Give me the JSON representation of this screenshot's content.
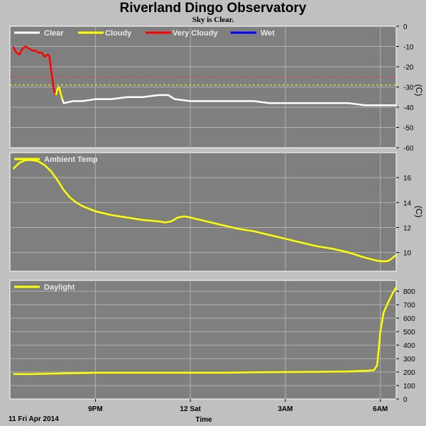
{
  "header": {
    "title": "Riverland Dingo Observatory",
    "subtitle": "Sky is Clear."
  },
  "colors": {
    "background": "#c0c0c0",
    "panel": "#7f7f7f",
    "grid": "#b0b0b0",
    "clear": "#ffffff",
    "cloudy": "#ffff00",
    "very_cloudy": "#ff0000",
    "wet": "#0000ff",
    "threshold_red": "#ff3030",
    "threshold_yellow": "#ffff00"
  },
  "footer": {
    "date_label": "11 Fri Apr 2014",
    "xlabel": "Time"
  },
  "chart_data": [
    {
      "type": "line",
      "panel": "sky",
      "ylabel": "(C)",
      "ylim": [
        -60,
        0
      ],
      "yticks": [
        0,
        -10,
        -20,
        -30,
        -40,
        -50,
        -60
      ],
      "xlim": [
        18.3,
        30.5
      ],
      "xticks": [
        {
          "x": 21,
          "label": "9PM"
        },
        {
          "x": 24,
          "label": "12 Sat"
        },
        {
          "x": 27,
          "label": "3AM"
        },
        {
          "x": 30,
          "label": "6AM"
        }
      ],
      "grid": true,
      "legend": [
        "Clear",
        "Cloudy",
        "Very Cloudy",
        "Wet"
      ],
      "thresholds": [
        {
          "y": -25,
          "color": "red"
        },
        {
          "y": -29,
          "color": "yellow"
        }
      ],
      "series": [
        {
          "name": "Very Cloudy",
          "color": "red",
          "points": [
            [
              18.4,
              -10
            ],
            [
              18.5,
              -13
            ],
            [
              18.6,
              -14
            ],
            [
              18.7,
              -11
            ],
            [
              18.8,
              -10
            ],
            [
              18.9,
              -11
            ],
            [
              19.0,
              -12
            ],
            [
              19.1,
              -12
            ],
            [
              19.2,
              -13
            ],
            [
              19.3,
              -13
            ],
            [
              19.4,
              -15
            ],
            [
              19.5,
              -14
            ],
            [
              19.55,
              -15
            ],
            [
              19.6,
              -22
            ],
            [
              19.7,
              -32
            ],
            [
              19.75,
              -34
            ]
          ]
        },
        {
          "name": "Cloudy",
          "color": "yellow",
          "points": [
            [
              19.75,
              -34
            ],
            [
              19.8,
              -31
            ],
            [
              19.85,
              -30
            ],
            [
              19.9,
              -33
            ],
            [
              19.95,
              -36
            ]
          ]
        },
        {
          "name": "Clear",
          "color": "white",
          "points": [
            [
              19.95,
              -36
            ],
            [
              20.0,
              -38
            ],
            [
              20.3,
              -37
            ],
            [
              20.6,
              -37
            ],
            [
              21.0,
              -36
            ],
            [
              21.5,
              -36
            ],
            [
              22.0,
              -35
            ],
            [
              22.5,
              -35
            ],
            [
              23.0,
              -34
            ],
            [
              23.3,
              -34
            ],
            [
              23.5,
              -36
            ],
            [
              24.0,
              -37
            ],
            [
              24.5,
              -37
            ],
            [
              25.0,
              -37
            ],
            [
              25.5,
              -37
            ],
            [
              26.0,
              -37
            ],
            [
              26.5,
              -38
            ],
            [
              27.0,
              -38
            ],
            [
              27.5,
              -38
            ],
            [
              28.0,
              -38
            ],
            [
              28.5,
              -38
            ],
            [
              29.0,
              -38
            ],
            [
              29.5,
              -39
            ],
            [
              30.0,
              -39
            ],
            [
              30.5,
              -39
            ]
          ]
        }
      ]
    },
    {
      "type": "line",
      "panel": "ambient",
      "ylabel": "(C)",
      "ylim": [
        8.5,
        18
      ],
      "yticks": [
        10,
        12,
        14,
        16
      ],
      "xlim": [
        18.3,
        30.5
      ],
      "grid": true,
      "legend": [
        "Ambient Temp"
      ],
      "series": [
        {
          "name": "Ambient Temp",
          "color": "yellow",
          "points": [
            [
              18.4,
              16.7
            ],
            [
              18.6,
              17.2
            ],
            [
              18.8,
              17.4
            ],
            [
              19.0,
              17.4
            ],
            [
              19.2,
              17.3
            ],
            [
              19.4,
              17.0
            ],
            [
              19.6,
              16.5
            ],
            [
              19.8,
              15.8
            ],
            [
              20.0,
              15.0
            ],
            [
              20.2,
              14.4
            ],
            [
              20.4,
              14.0
            ],
            [
              20.6,
              13.7
            ],
            [
              20.8,
              13.5
            ],
            [
              21.0,
              13.3
            ],
            [
              21.5,
              13.0
            ],
            [
              22.0,
              12.8
            ],
            [
              22.5,
              12.6
            ],
            [
              23.0,
              12.5
            ],
            [
              23.2,
              12.4
            ],
            [
              23.4,
              12.5
            ],
            [
              23.6,
              12.8
            ],
            [
              23.8,
              12.9
            ],
            [
              24.0,
              12.8
            ],
            [
              24.5,
              12.5
            ],
            [
              25.0,
              12.2
            ],
            [
              25.5,
              11.9
            ],
            [
              26.0,
              11.7
            ],
            [
              26.5,
              11.4
            ],
            [
              27.0,
              11.1
            ],
            [
              27.5,
              10.8
            ],
            [
              28.0,
              10.5
            ],
            [
              28.5,
              10.3
            ],
            [
              29.0,
              10.0
            ],
            [
              29.5,
              9.6
            ],
            [
              29.8,
              9.4
            ],
            [
              30.0,
              9.3
            ],
            [
              30.2,
              9.3
            ],
            [
              30.3,
              9.4
            ],
            [
              30.5,
              9.8
            ]
          ]
        }
      ]
    },
    {
      "type": "line",
      "panel": "daylight",
      "ylabel": "",
      "ylim": [
        0,
        880
      ],
      "yticks": [
        0,
        100,
        200,
        300,
        400,
        500,
        600,
        700,
        800
      ],
      "xlim": [
        18.3,
        30.5
      ],
      "grid": true,
      "legend": [
        "Daylight"
      ],
      "series": [
        {
          "name": "Daylight",
          "color": "yellow",
          "points": [
            [
              18.4,
              185
            ],
            [
              19.0,
              185
            ],
            [
              20.0,
              190
            ],
            [
              21.0,
              195
            ],
            [
              22.0,
              195
            ],
            [
              23.0,
              195
            ],
            [
              24.0,
              195
            ],
            [
              25.0,
              195
            ],
            [
              26.0,
              198
            ],
            [
              27.0,
              200
            ],
            [
              28.0,
              202
            ],
            [
              29.0,
              205
            ],
            [
              29.6,
              210
            ],
            [
              29.8,
              215
            ],
            [
              29.9,
              250
            ],
            [
              30.0,
              500
            ],
            [
              30.1,
              640
            ],
            [
              30.25,
              720
            ],
            [
              30.4,
              790
            ],
            [
              30.5,
              830
            ]
          ]
        }
      ]
    }
  ]
}
